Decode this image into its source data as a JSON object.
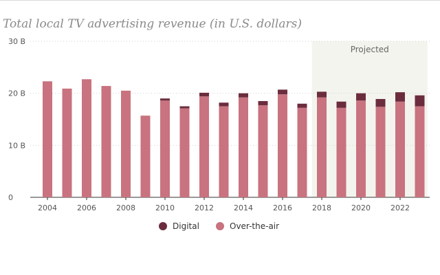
{
  "chart_data": {
    "type": "bar",
    "stacked": true,
    "title": "Total local TV advertising revenue (in U.S. dollars)",
    "x": [
      2004,
      2005,
      2006,
      2007,
      2008,
      2009,
      2010,
      2011,
      2012,
      2013,
      2014,
      2015,
      2016,
      2017,
      2018,
      2019,
      2020,
      2021,
      2022,
      2023
    ],
    "series": [
      {
        "name": "Over-the-air",
        "color": "#c8737f",
        "values": [
          22.3,
          20.9,
          22.7,
          21.4,
          20.5,
          15.7,
          18.6,
          17.1,
          19.4,
          17.5,
          19.2,
          17.7,
          19.8,
          17.2,
          19.2,
          17.2,
          18.6,
          17.4,
          18.4,
          17.5
        ]
      },
      {
        "name": "Digital",
        "color": "#6b2d3e",
        "values": [
          0,
          0,
          0,
          0,
          0,
          0,
          0.4,
          0.4,
          0.7,
          0.7,
          0.8,
          0.8,
          0.9,
          0.8,
          1.1,
          1.2,
          1.4,
          1.5,
          1.8,
          2.1
        ]
      }
    ],
    "y_ticks": [
      {
        "value": 0,
        "label": "0"
      },
      {
        "value": 10,
        "label": "10 B"
      },
      {
        "value": 20,
        "label": "20 B"
      },
      {
        "value": 30,
        "label": "30 B"
      }
    ],
    "x_tick_labels": [
      "2004",
      "2006",
      "2008",
      "2010",
      "2012",
      "2014",
      "2016",
      "2018",
      "2020",
      "2022"
    ],
    "ylim": [
      0,
      30
    ],
    "grid": true,
    "legend": {
      "placement": "bottom-center",
      "entries": [
        "Digital",
        "Over-the-air"
      ]
    },
    "projected_region": {
      "label": "Projected",
      "from": 2018,
      "to": 2023,
      "color": "#f4f4ee"
    }
  }
}
